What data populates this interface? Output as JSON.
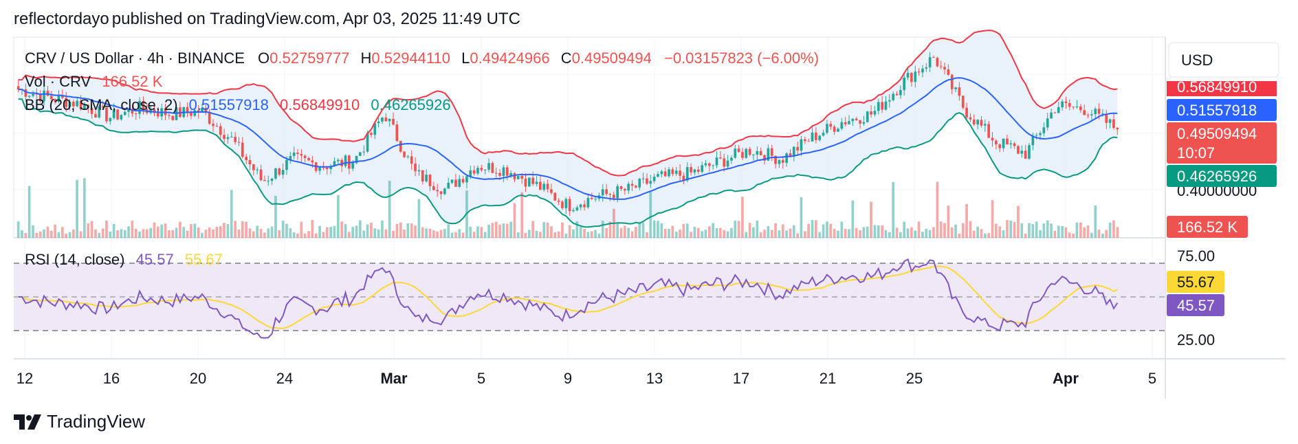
{
  "header": {
    "author": "reflectordayo",
    "published_on": "published on TradingView.com,",
    "date": "Apr 03, 2025 11:49 UTC"
  },
  "legend": {
    "title": "CRV / US Dollar · 4h · BINANCE",
    "o_label": "O",
    "o": "0.52759777",
    "h_label": "H",
    "h": "0.52944110",
    "l_label": "L",
    "l": "0.49424966",
    "c_label": "C",
    "c": "0.49509494",
    "change": "−0.03157823 (−6.00%)",
    "vol_label": "Vol · CRV",
    "vol": "166.52 K",
    "bb_label": "BB (20, SMA, close, 2)",
    "bb_basis": "0.51557918",
    "bb_upper": "0.56849910",
    "bb_lower": "0.46265926",
    "rsi_label": "RSI (14, close)",
    "rsi": "45.57",
    "rsi_ma": "55.67"
  },
  "currency_button": "USD",
  "price_axis": {
    "tick": "0.40000000",
    "upper_tag": "0.56849910",
    "basis_tag": "0.51557918",
    "close_tag": "0.49509494",
    "countdown": "10:07",
    "lower_tag": "0.46265926",
    "vol_tag": "166.52 K"
  },
  "rsi_axis": {
    "upper": "75.00",
    "lower": "25.00",
    "ma_tag": "55.67",
    "rsi_tag": "45.57"
  },
  "time_axis": [
    "12",
    "16",
    "20",
    "24",
    "Mar",
    "5",
    "9",
    "13",
    "17",
    "21",
    "25",
    "Apr",
    "5"
  ],
  "colors": {
    "up": "#26a69a",
    "down": "#ef5350",
    "bb_upper": "#f23645",
    "bb_basis": "#2962ff",
    "bb_lower": "#089981",
    "bb_fill": "#e3eefa",
    "rsi": "#7e57c2",
    "rsi_ma": "#fdd835",
    "rsi_band": "#ede7f6"
  },
  "footer": {
    "brand": "TradingView",
    "logo_icon": "tradingview-logo-icon"
  },
  "chart_data": {
    "type": "candlestick",
    "symbol": "CRV / US Dollar",
    "interval": "4h",
    "exchange": "BINANCE",
    "price_range": [
      0.36,
      0.61
    ],
    "rsi_range": [
      15,
      90
    ],
    "close_path": [
      {
        "d": "Feb 12",
        "p": 0.545
      },
      {
        "d": "Feb 14",
        "p": 0.535
      },
      {
        "d": "Feb 16",
        "p": 0.527
      },
      {
        "d": "Feb 18",
        "p": 0.51
      },
      {
        "d": "Feb 20",
        "p": 0.522
      },
      {
        "d": "Feb 22",
        "p": 0.514
      },
      {
        "d": "Feb 23",
        "p": 0.518
      },
      {
        "d": "Feb 24",
        "p": 0.482
      },
      {
        "d": "Feb 25",
        "p": 0.43
      },
      {
        "d": "Feb 26",
        "p": 0.458
      },
      {
        "d": "Feb 28",
        "p": 0.45
      },
      {
        "d": "Mar 1",
        "p": 0.456
      },
      {
        "d": "Mar 2",
        "p": 0.515
      },
      {
        "d": "Mar 3",
        "p": 0.44
      },
      {
        "d": "Mar 4",
        "p": 0.42
      },
      {
        "d": "Mar 5",
        "p": 0.45
      },
      {
        "d": "Mar 7",
        "p": 0.445
      },
      {
        "d": "Mar 9",
        "p": 0.425
      },
      {
        "d": "Mar 10",
        "p": 0.4
      },
      {
        "d": "Mar 11",
        "p": 0.412
      },
      {
        "d": "Mar 13",
        "p": 0.42
      },
      {
        "d": "Mar 15",
        "p": 0.435
      },
      {
        "d": "Mar 17",
        "p": 0.44
      },
      {
        "d": "Mar 18",
        "p": 0.455
      },
      {
        "d": "Mar 19",
        "p": 0.47
      },
      {
        "d": "Mar 21",
        "p": 0.458
      },
      {
        "d": "Mar 22",
        "p": 0.485
      },
      {
        "d": "Mar 24",
        "p": 0.505
      },
      {
        "d": "Mar 25",
        "p": 0.515
      },
      {
        "d": "Mar 26",
        "p": 0.555
      },
      {
        "d": "Mar 27",
        "p": 0.585
      },
      {
        "d": "Mar 28",
        "p": 0.52
      },
      {
        "d": "Mar 30",
        "p": 0.48
      },
      {
        "d": "Mar 31",
        "p": 0.465
      },
      {
        "d": "Apr 1",
        "p": 0.525
      },
      {
        "d": "Apr 2",
        "p": 0.52
      },
      {
        "d": "Apr 3",
        "p": 0.495
      }
    ],
    "rsi_levels": [
      25,
      50,
      75
    ],
    "last": {
      "open": 0.52759777,
      "high": 0.5294411,
      "low": 0.49424966,
      "close": 0.49509494,
      "volume": "166.52 K",
      "rsi": 45.57,
      "rsi_ma": 55.67
    }
  }
}
